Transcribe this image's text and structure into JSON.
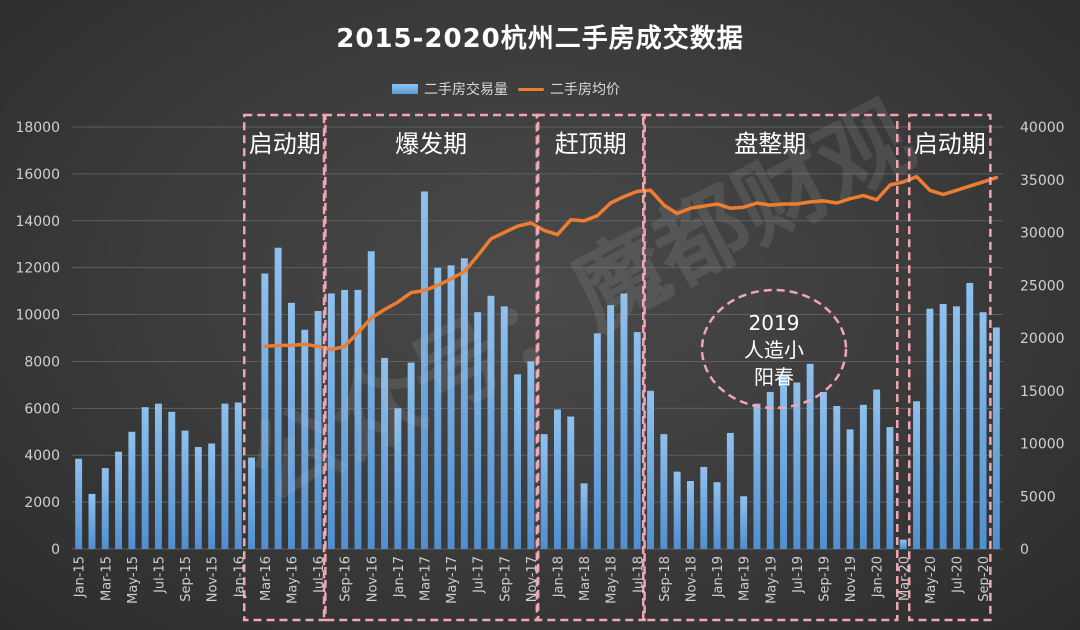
{
  "title": "2015-2020杭州二手房成交数据",
  "chart_data": {
    "type": "bar+line",
    "title": "2015-2020杭州二手房成交数据",
    "categories": [
      "Jan-15",
      "Feb-15",
      "Mar-15",
      "Apr-15",
      "May-15",
      "Jun-15",
      "Jul-15",
      "Aug-15",
      "Sep-15",
      "Oct-15",
      "Nov-15",
      "Dec-15",
      "Jan-16",
      "Feb-16",
      "Mar-16",
      "Apr-16",
      "May-16",
      "Jun-16",
      "Jul-16",
      "Aug-16",
      "Sep-16",
      "Oct-16",
      "Nov-16",
      "Dec-16",
      "Jan-17",
      "Feb-17",
      "Mar-17",
      "Apr-17",
      "May-17",
      "Jun-17",
      "Jul-17",
      "Aug-17",
      "Sep-17",
      "Oct-17",
      "Nov-17",
      "Dec-17",
      "Jan-18",
      "Feb-18",
      "Mar-18",
      "Apr-18",
      "May-18",
      "Jun-18",
      "Jul-18",
      "Aug-18",
      "Sep-18",
      "Oct-18",
      "Nov-18",
      "Dec-18",
      "Jan-19",
      "Feb-19",
      "Mar-19",
      "Apr-19",
      "May-19",
      "Jun-19",
      "Jul-19",
      "Aug-19",
      "Sep-19",
      "Oct-19",
      "Nov-19",
      "Dec-19",
      "Jan-20",
      "Feb-20",
      "Mar-20",
      "Apr-20",
      "May-20",
      "Jun-20",
      "Jul-20",
      "Aug-20",
      "Sep-20",
      "Oct-20"
    ],
    "x_tick_labels": [
      "Jan-15",
      "Mar-15",
      "May-15",
      "Jul-15",
      "Sep-15",
      "Nov-15",
      "Jan-16",
      "Mar-16",
      "May-16",
      "Jul-16",
      "Sep-16",
      "Nov-16",
      "Jan-17",
      "Mar-17",
      "May-17",
      "Jul-17",
      "Sep-17",
      "Nov-17",
      "Jan-18",
      "Mar-18",
      "May-18",
      "Jul-18",
      "Sep-18",
      "Nov-18",
      "Jan-19",
      "Mar-19",
      "May-19",
      "Jul-19",
      "Sep-19",
      "Nov-19",
      "Jan-20",
      "Mar-20",
      "May-20",
      "Jul-20",
      "Sep-20"
    ],
    "series": [
      {
        "name": "二手房交易量",
        "type": "bar",
        "axis": "left",
        "color": "#5b9bd5",
        "values": [
          3850,
          2350,
          3450,
          4150,
          5000,
          6050,
          6200,
          5850,
          5050,
          4350,
          4500,
          6200,
          6250,
          3900,
          11750,
          12850,
          10500,
          9350,
          10150,
          10900,
          11050,
          11050,
          12700,
          8150,
          6000,
          7950,
          15250,
          12000,
          12100,
          12400,
          10100,
          10800,
          10350,
          7450,
          8000,
          4900,
          5950,
          5650,
          2800,
          9200,
          10400,
          10900,
          9250,
          6750,
          4900,
          3300,
          2900,
          3500,
          2850,
          4950,
          2250,
          6200,
          6700,
          7400,
          7100,
          7900,
          6700,
          6100,
          5100,
          6150,
          6800,
          5200,
          400,
          6300,
          10250,
          10450,
          10350,
          11350,
          10100,
          9450
        ]
      },
      {
        "name": "二手房均价",
        "type": "line",
        "axis": "right",
        "color": "#ed7d31",
        "values": [
          null,
          null,
          null,
          null,
          null,
          null,
          null,
          null,
          null,
          null,
          null,
          null,
          null,
          null,
          19200,
          19300,
          19300,
          19400,
          19200,
          18900,
          19200,
          20500,
          21900,
          22700,
          23400,
          24300,
          24500,
          25000,
          25600,
          26300,
          27800,
          29400,
          30000,
          30600,
          30900,
          30200,
          29800,
          31200,
          31100,
          31600,
          32800,
          33400,
          33900,
          34000,
          32600,
          31800,
          32300,
          32500,
          32700,
          32300,
          32400,
          32800,
          32600,
          32700,
          32700,
          32900,
          33000,
          32800,
          33200,
          33500,
          33100,
          34500,
          34800,
          35300,
          34000,
          33600,
          34000,
          34400,
          34800,
          35200
        ]
      }
    ],
    "y_left": {
      "min": 0,
      "max": 18000,
      "ticks": [
        0,
        2000,
        4000,
        6000,
        8000,
        10000,
        12000,
        14000,
        16000,
        18000
      ]
    },
    "y_right": {
      "min": 0,
      "max": 40000,
      "ticks": [
        0,
        5000,
        10000,
        15000,
        20000,
        25000,
        30000,
        35000,
        40000
      ]
    },
    "legend": {
      "position": "top",
      "items": [
        "二手房交易量",
        "二手房均价"
      ]
    },
    "grid": true,
    "phases": [
      {
        "label": "启动期",
        "start": "Feb-16",
        "end": "Aug-16"
      },
      {
        "label": "爆发期",
        "start": "Aug-16",
        "end": "Dec-17"
      },
      {
        "label": "赶顶期",
        "start": "Dec-17",
        "end": "Aug-18"
      },
      {
        "label": "盘整期",
        "start": "Aug-18",
        "end": "Mar-20"
      },
      {
        "label": "启动期",
        "start": "Apr-20",
        "end": "Oct-20"
      }
    ],
    "annotation": {
      "year": "2019",
      "line1": "人造小",
      "line2": "阳春"
    },
    "watermark": "公众号：魔都财观"
  }
}
